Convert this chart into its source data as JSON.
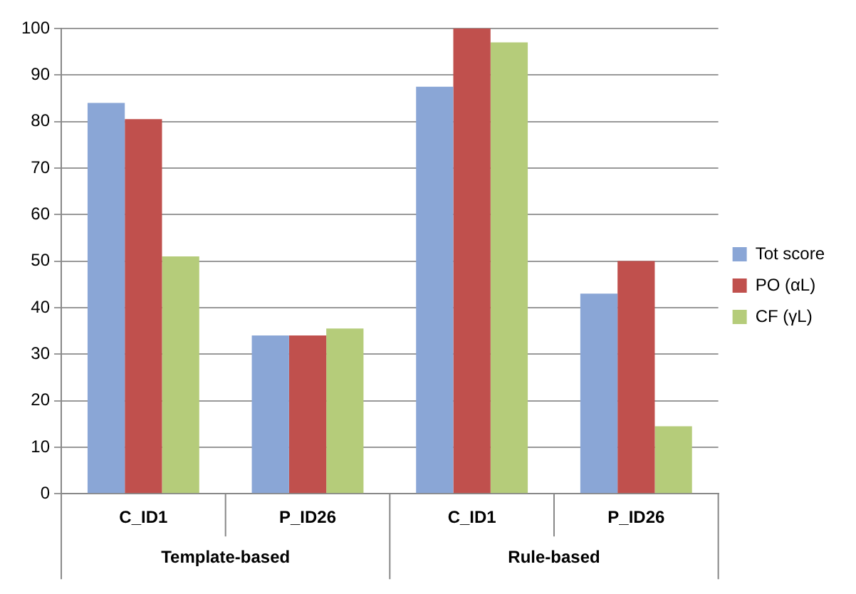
{
  "chart_data": {
    "type": "bar",
    "categories": [
      "C_ID1",
      "P_ID26",
      "C_ID1",
      "P_ID26"
    ],
    "series": [
      {
        "name": "Tot score",
        "color": "#8aa6d6",
        "values": [
          84,
          34,
          87.5,
          43
        ]
      },
      {
        "name": "PO (αL)",
        "color": "#c0504d",
        "values": [
          80.5,
          34,
          100,
          50
        ]
      },
      {
        "name": "CF (γL)",
        "color": "#b5cc7a",
        "values": [
          51,
          35.5,
          97,
          14.5
        ]
      }
    ],
    "annotations": [
      "Template-based",
      "Rule-based"
    ],
    "ylim": [
      0,
      100
    ],
    "yticks": [
      0,
      10,
      20,
      30,
      40,
      50,
      60,
      70,
      80,
      90,
      100
    ],
    "grid": "y",
    "legend": "right"
  }
}
